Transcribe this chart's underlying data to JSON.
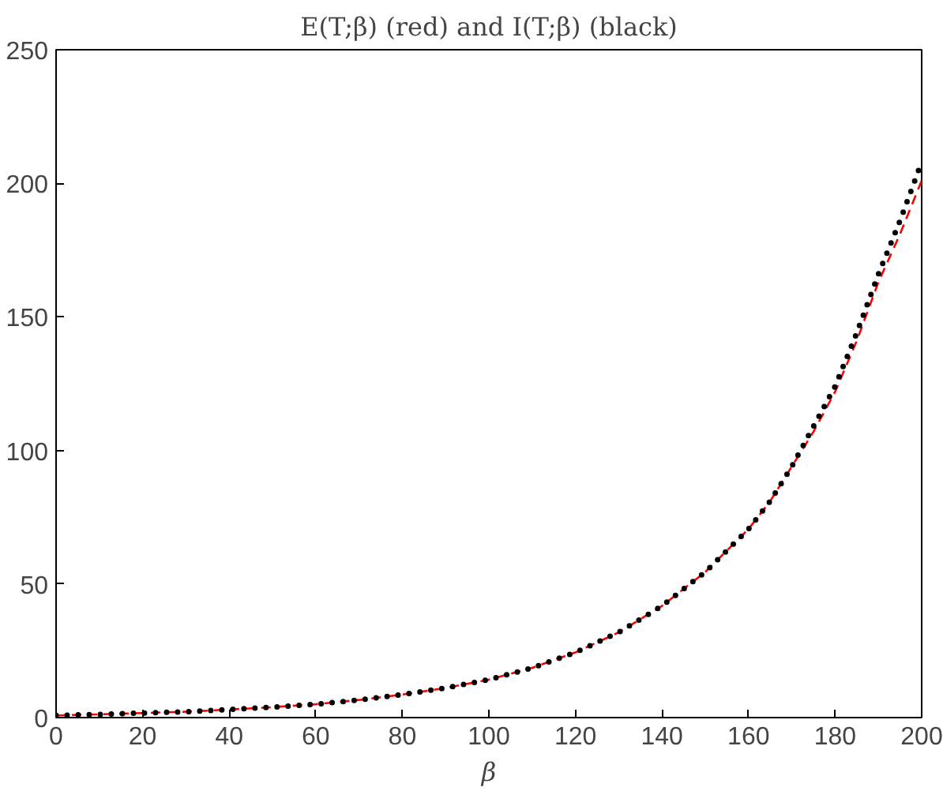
{
  "chart_data": {
    "type": "line",
    "title": "E(T;β) (red) and I(T;β) (black)",
    "xlabel": "β",
    "x": [
      0,
      10,
      20,
      30,
      40,
      50,
      60,
      70,
      80,
      90,
      100,
      110,
      120,
      130,
      140,
      150,
      160,
      165,
      170,
      175,
      180,
      185,
      190,
      195,
      200
    ],
    "series": [
      {
        "color": "#ff0000",
        "line_style": "dashed",
        "values": [
          0.8,
          1.2,
          1.7,
          2.2,
          3,
          3.9,
          5,
          6.6,
          8.6,
          11.1,
          14.2,
          18.6,
          24.4,
          31.9,
          41.8,
          54.5,
          70.6,
          81,
          94,
          107,
          122,
          141,
          163,
          181,
          201
        ]
      },
      {
        "color": "#000000",
        "line_style": "dotted",
        "values": [
          0.8,
          1.2,
          1.7,
          2.2,
          3,
          3.9,
          5,
          6.6,
          8.6,
          11.1,
          14.2,
          18.6,
          24.4,
          31.9,
          41.8,
          54.5,
          70.6,
          81,
          94,
          109,
          124,
          144,
          166,
          186,
          208
        ]
      }
    ],
    "xlim": [
      0,
      200
    ],
    "xticks": [
      0,
      20,
      40,
      60,
      80,
      100,
      120,
      140,
      160,
      180,
      200
    ],
    "ylim": [
      0,
      250
    ],
    "yticks": [
      0,
      50,
      100,
      150,
      200,
      250
    ]
  }
}
